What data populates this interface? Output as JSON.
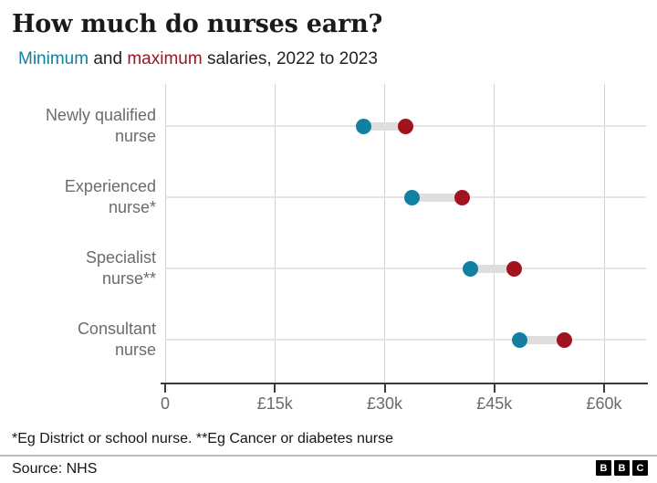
{
  "title": "How much do nurses earn?",
  "subtitle": {
    "min_word": "Minimum",
    "and_word": " and ",
    "max_word": "maximum",
    "rest": " salaries, 2022 to 2023"
  },
  "colors": {
    "min": "#1380a1",
    "max": "#a1131f",
    "connector": "#dedede",
    "grid_vertical": "#d2d2d2",
    "grid_row": "#e4e4e4",
    "axis": "#3a3a3a",
    "tick_label": "#6b6b6b",
    "category_label": "#6b6b6b"
  },
  "chart_data": {
    "type": "dumbbell",
    "title": "How much do nurses earn?",
    "subtitle": "Minimum and maximum salaries, 2022 to 2023",
    "categories": [
      "Newly qualified nurse",
      "Experienced nurse*",
      "Specialist nurse**",
      "Consultant nurse"
    ],
    "category_lines": [
      [
        "Newly qualified",
        "nurse"
      ],
      [
        "Experienced",
        "nurse*"
      ],
      [
        "Specialist",
        "nurse**"
      ],
      [
        "Consultant",
        "nurse"
      ]
    ],
    "series": [
      {
        "name": "Minimum",
        "values": [
          27100,
          33700,
          41700,
          48500
        ]
      },
      {
        "name": "Maximum",
        "values": [
          32900,
          40600,
          47700,
          54600
        ]
      }
    ],
    "x_ticks": [
      {
        "value": 0,
        "label": "0"
      },
      {
        "value": 15000,
        "label": "£15k"
      },
      {
        "value": 30000,
        "label": "£30k"
      },
      {
        "value": 45000,
        "label": "£45k"
      },
      {
        "value": 60000,
        "label": "£60k"
      }
    ],
    "xlim": [
      0,
      60000
    ],
    "grid": true,
    "legend_position": "in-subtitle",
    "xlabel": "",
    "ylabel": ""
  },
  "footnote": "*Eg District or school nurse. **Eg Cancer or diabetes nurse",
  "source": "Source: NHS",
  "logo_letters": [
    "B",
    "B",
    "C"
  ]
}
